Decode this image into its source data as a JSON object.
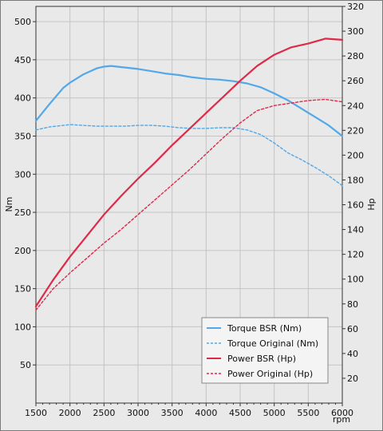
{
  "chart_data": {
    "type": "line",
    "xlabel": "rpm",
    "ylabel_left": "Nm",
    "ylabel_right": "Hp",
    "x_ticks": [
      1500,
      2000,
      2500,
      3000,
      3500,
      4000,
      4500,
      5000,
      5500,
      6000
    ],
    "y_left_ticks": [
      50,
      100,
      150,
      200,
      250,
      300,
      350,
      400,
      450,
      500
    ],
    "y_right_ticks": [
      20,
      40,
      60,
      80,
      100,
      120,
      140,
      160,
      180,
      200,
      220,
      240,
      260,
      280,
      300,
      320
    ],
    "xlim": [
      1500,
      6000
    ],
    "ylim_left": [
      0,
      520
    ],
    "ylim_right": [
      0,
      320
    ],
    "grid": true,
    "legend_position": "bottom-right",
    "colors": {
      "torque": "#52a8e8",
      "power": "#de2a48",
      "background": "#e9e9e9",
      "grid": "#c4c4c4"
    },
    "series": [
      {
        "name": "Torque BSR (Nm)",
        "axis": "left",
        "style": "solid",
        "color": "#52a8e8",
        "x": [
          1500,
          1700,
          1900,
          2000,
          2200,
          2400,
          2500,
          2600,
          2800,
          3000,
          3200,
          3400,
          3600,
          3800,
          4000,
          4200,
          4400,
          4600,
          4800,
          5000,
          5200,
          5400,
          5600,
          5800,
          6000
        ],
        "y": [
          370,
          392,
          413,
          420,
          431,
          439,
          441,
          442,
          440,
          438,
          435,
          432,
          430,
          427,
          425,
          424,
          422,
          419,
          414,
          406,
          397,
          386,
          375,
          364,
          350
        ]
      },
      {
        "name": "Torque Original (Nm)",
        "axis": "left",
        "style": "dashed",
        "color": "#52a8e8",
        "x": [
          1500,
          1700,
          1900,
          2000,
          2200,
          2400,
          2600,
          2800,
          3000,
          3200,
          3400,
          3600,
          3800,
          4000,
          4200,
          4400,
          4600,
          4800,
          5000,
          5200,
          5400,
          5600,
          5800,
          6000
        ],
        "y": [
          358,
          362,
          364,
          365,
          364,
          363,
          363,
          363,
          364,
          364,
          363,
          361,
          360,
          360,
          361,
          361,
          358,
          352,
          341,
          328,
          319,
          309,
          298,
          285
        ]
      },
      {
        "name": "Power BSR (Hp)",
        "axis": "right",
        "style": "solid",
        "color": "#de2a48",
        "x": [
          1500,
          1750,
          2000,
          2250,
          2500,
          2750,
          3000,
          3250,
          3500,
          3750,
          4000,
          4250,
          4500,
          4750,
          5000,
          5250,
          5500,
          5750,
          6000
        ],
        "y": [
          78,
          99,
          118,
          135,
          152,
          167,
          181,
          194,
          208,
          221,
          234,
          247,
          260,
          272,
          281,
          287,
          290,
          294,
          293
        ]
      },
      {
        "name": "Power Original (Hp)",
        "axis": "right",
        "style": "dashed",
        "color": "#de2a48",
        "x": [
          1500,
          1750,
          2000,
          2250,
          2500,
          2750,
          3000,
          3250,
          3500,
          3750,
          4000,
          4250,
          4500,
          4750,
          5000,
          5250,
          5500,
          5750,
          6000
        ],
        "y": [
          75,
          92,
          105,
          117,
          129,
          140,
          152,
          164,
          176,
          188,
          201,
          214,
          226,
          236,
          240,
          242,
          244,
          245,
          243
        ]
      }
    ]
  }
}
